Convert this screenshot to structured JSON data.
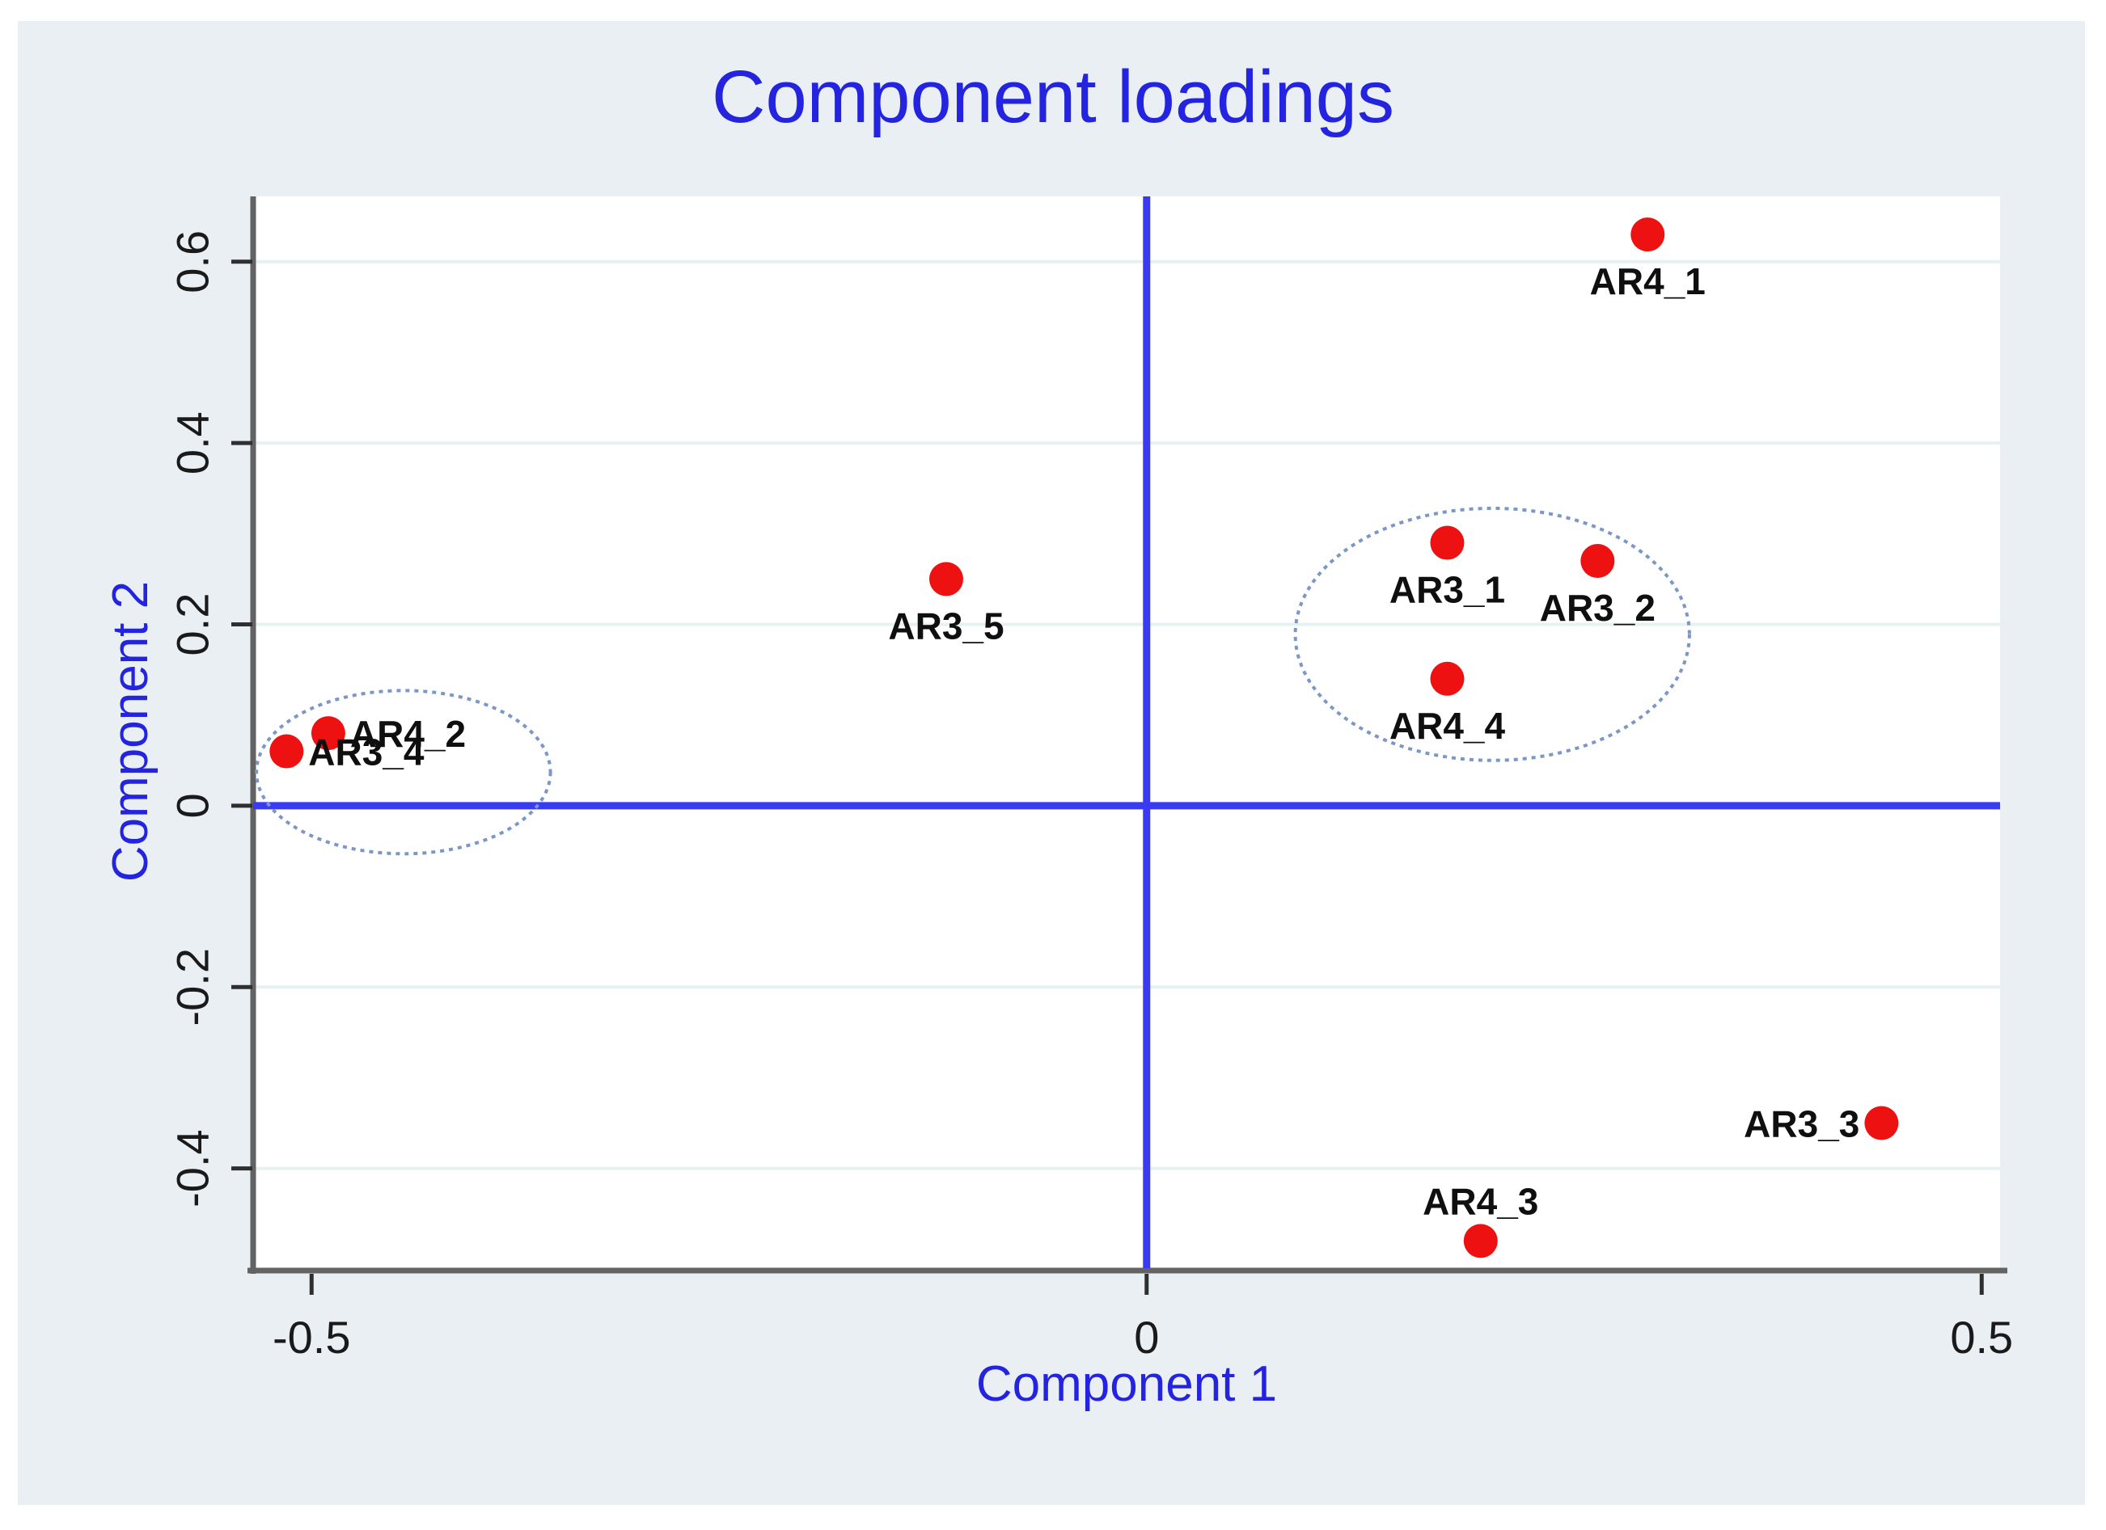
{
  "colors": {
    "panel_background": "#e9eff3",
    "plot_background": "#ffffff",
    "grid": "#e7f0f2",
    "axis_line": "#636363",
    "tick_mark": "#2f2f2f",
    "reference_line_blue": "#3a3af0",
    "marker_red": "#ee1111",
    "ellipse_stroke": "#7b97c6",
    "heading_blue": "#2424e0",
    "tick_text": "#1a1a1a",
    "point_label_text": "#0f0f0f"
  },
  "chart_data": {
    "type": "scatter",
    "title": "Component loadings",
    "xlabel": "Component 1",
    "ylabel": "Component 2",
    "xlim": [
      -0.535,
      0.511
    ],
    "ylim": [
      -0.51,
      0.672
    ],
    "x_ticks": [
      -0.5,
      0,
      0.5
    ],
    "y_ticks": [
      0.6,
      0.4,
      0.2,
      0,
      -0.2,
      -0.4
    ],
    "grid": "horizontal gridlines only",
    "legend": "none",
    "reference_lines": {
      "vertical_at_x": 0,
      "horizontal_at_y": 0
    },
    "points": [
      {
        "label": "AR4_1",
        "x": 0.3,
        "y": 0.63,
        "label_pos": "below"
      },
      {
        "label": "AR3_5",
        "x": -0.12,
        "y": 0.25,
        "label_pos": "below"
      },
      {
        "label": "AR3_1",
        "x": 0.18,
        "y": 0.29,
        "label_pos": "below"
      },
      {
        "label": "AR3_2",
        "x": 0.27,
        "y": 0.27,
        "label_pos": "below"
      },
      {
        "label": "AR4_4",
        "x": 0.18,
        "y": 0.14,
        "label_pos": "below"
      },
      {
        "label": "AR4_2",
        "x": -0.49,
        "y": 0.08,
        "label_pos": "right"
      },
      {
        "label": "AR3_4",
        "x": -0.515,
        "y": 0.06,
        "label_pos": "right"
      },
      {
        "label": "AR3_3",
        "x": 0.44,
        "y": -0.35,
        "label_pos": "left"
      },
      {
        "label": "AR4_3",
        "x": 0.2,
        "y": -0.48,
        "label_pos": "above"
      }
    ],
    "cluster_ellipses": [
      {
        "cx": 0.207,
        "cy": 0.189,
        "rx": 0.118,
        "ry": 0.139
      },
      {
        "cx": -0.445,
        "cy": 0.037,
        "rx": 0.088,
        "ry": 0.09
      }
    ]
  }
}
